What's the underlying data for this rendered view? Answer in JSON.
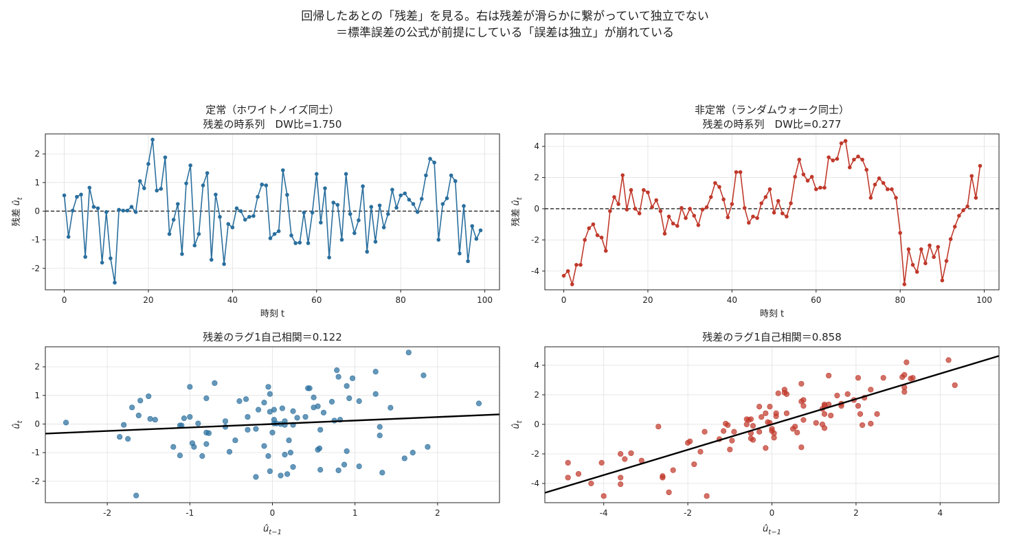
{
  "figure": {
    "title_line1": "回帰したあとの「残差」を見る。右は残差が滑らかに繋がっていて独立でない",
    "title_line2": "＝標準誤差の公式が前提にしている「誤差は独立」が崩れている"
  },
  "colors": {
    "blue": "#2a6f9e",
    "red": "#c0392b",
    "fit": "#000000",
    "zero": "#222222"
  },
  "chart_data": [
    {
      "id": "ts_stationary",
      "type": "line",
      "title_line1": "定常（ホワイトノイズ同士）",
      "title_line2": "残差の時系列　DW比=1.750",
      "xlabel": "時刻 t",
      "ylabel": "残差 û_t",
      "xlim": [
        -4.5,
        103.5
      ],
      "ylim": [
        -2.75,
        2.7
      ],
      "xticks": [
        0,
        20,
        40,
        60,
        80,
        100
      ],
      "yticks": [
        -2,
        -1,
        0,
        1,
        2
      ],
      "hline": 0,
      "grid": true,
      "x_start": 0,
      "y": [
        0.55,
        -0.9,
        0.02,
        0.5,
        0.58,
        -1.6,
        0.82,
        0.15,
        0.1,
        -1.8,
        -0.03,
        -1.65,
        -2.5,
        0.05,
        0.02,
        0.02,
        0.15,
        -0.03,
        1.05,
        0.8,
        1.65,
        2.5,
        0.72,
        0.78,
        1.88,
        -0.8,
        -0.3,
        0.25,
        -1.5,
        0.97,
        1.6,
        -1.2,
        -0.8,
        0.9,
        1.33,
        -1.7,
        0.58,
        -0.2,
        -1.85,
        -0.45,
        -0.57,
        0.1,
        0.0,
        -0.3,
        -0.2,
        -0.17,
        0.5,
        0.93,
        0.9,
        -0.95,
        -0.8,
        -0.7,
        1.43,
        0.57,
        -0.85,
        -1.12,
        -1.1,
        -0.05,
        -1.12,
        -0.05,
        1.3,
        -0.4,
        0.8,
        -1.62,
        0.3,
        0.22,
        -1.0,
        1.3,
        -0.1,
        -0.77,
        -0.32,
        0.87,
        -1.42,
        0.15,
        -1.07,
        0.2,
        -0.57,
        -0.1,
        0.75,
        0.12,
        0.55,
        0.62,
        0.4,
        0.25,
        -0.03,
        0.43,
        1.25,
        1.83,
        1.7,
        -1.0,
        0.25,
        0.45,
        1.25,
        1.05,
        -1.48,
        0.18,
        -1.75,
        -0.52,
        -0.97,
        -0.67
      ]
    },
    {
      "id": "ts_random_walk",
      "type": "line",
      "title_line1": "非定常（ランダムウォーク同士）",
      "title_line2": "残差の時系列　DW比=0.277",
      "xlabel": "時刻 t",
      "ylabel": "残差 û_t",
      "xlim": [
        -4.5,
        103.5
      ],
      "ylim": [
        -5.2,
        4.8
      ],
      "xticks": [
        0,
        20,
        40,
        60,
        80,
        100
      ],
      "yticks": [
        -4,
        -2,
        0,
        2,
        4
      ],
      "hline": 0,
      "grid": true,
      "x_start": 0,
      "y": [
        -4.3,
        -4.0,
        -4.85,
        -3.6,
        -3.6,
        -2.0,
        -1.25,
        -1.0,
        -1.7,
        -1.85,
        -2.7,
        -0.15,
        0.75,
        0.3,
        2.15,
        -0.05,
        1.2,
        0.0,
        -0.3,
        1.2,
        1.05,
        0.1,
        0.55,
        -0.15,
        -1.6,
        -0.5,
        -0.95,
        -1.1,
        0.05,
        -0.6,
        0.0,
        -0.45,
        -1.05,
        -0.05,
        0.1,
        0.75,
        1.65,
        1.4,
        0.6,
        -0.55,
        0.3,
        2.35,
        2.35,
        0.05,
        -0.9,
        -0.5,
        -0.6,
        0.35,
        0.75,
        1.25,
        -0.25,
        0.5,
        -0.3,
        -0.5,
        0.35,
        2.05,
        3.15,
        2.2,
        1.8,
        2.05,
        1.25,
        1.35,
        1.35,
        3.3,
        3.1,
        3.2,
        4.2,
        4.35,
        2.65,
        3.15,
        3.35,
        3.15,
        2.5,
        0.7,
        1.55,
        1.95,
        1.65,
        1.25,
        1.25,
        0.7,
        -1.55,
        -4.85,
        -2.6,
        -3.6,
        -4.05,
        -2.6,
        -3.5,
        -2.35,
        -3.1,
        -2.45,
        -4.6,
        -3.35,
        -1.95,
        -1.15,
        -0.45,
        -0.1,
        0.15,
        2.1,
        0.7,
        2.75
      ]
    },
    {
      "id": "lag_stationary",
      "type": "scatter",
      "title": "残差のラグ1自己相関＝0.122",
      "xlabel": "û_{t−1}",
      "ylabel": "û_t",
      "xlim": [
        -2.75,
        2.75
      ],
      "ylim": [
        -2.75,
        2.7
      ],
      "xticks": [
        -2,
        -1,
        0,
        1,
        2
      ],
      "yticks": [
        -2,
        -1,
        0,
        1,
        2
      ],
      "grid": true,
      "fit_line": {
        "slope": 0.122,
        "intercept": 0.0
      },
      "source_series": 0
    },
    {
      "id": "lag_random_walk",
      "type": "scatter",
      "title": "残差のラグ1自己相関＝0.858",
      "xlabel": "û_{t−1}",
      "ylabel": "û_t",
      "xlim": [
        -5.4,
        5.4
      ],
      "ylim": [
        -5.3,
        5.25
      ],
      "xticks": [
        -4,
        -2,
        0,
        2,
        4
      ],
      "yticks": [
        -4,
        -2,
        0,
        2,
        4
      ],
      "grid": true,
      "fit_line": {
        "slope": 0.858,
        "intercept": 0.0
      },
      "source_series": 1
    }
  ]
}
